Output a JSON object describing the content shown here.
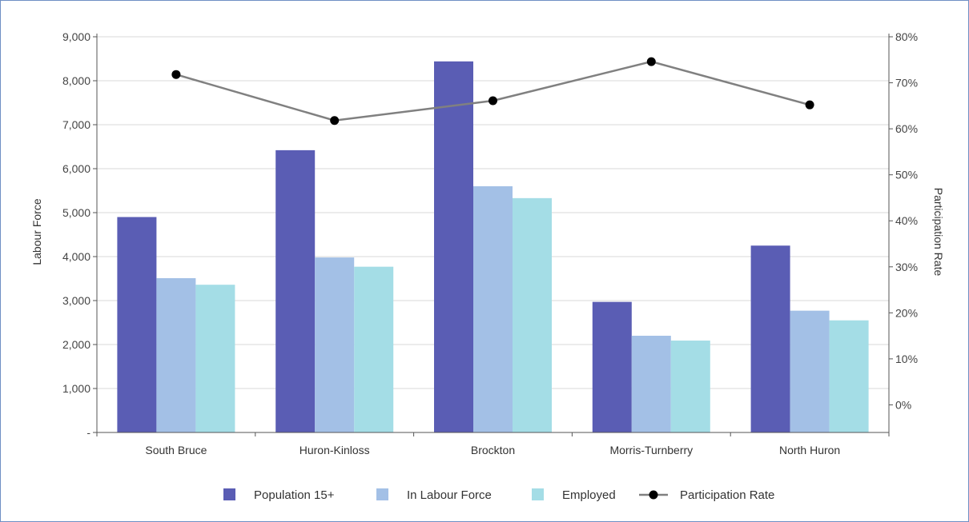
{
  "chart_data": {
    "type": "bar",
    "categories": [
      "South Bruce",
      "Huron-Kinloss",
      "Brockton",
      "Morris-Turnberry",
      "North Huron"
    ],
    "series": [
      {
        "name": "Population 15+",
        "type": "bar",
        "axis": "left",
        "color": "#5a5db4",
        "values": [
          4900,
          6420,
          8440,
          2970,
          4250
        ]
      },
      {
        "name": "In Labour Force",
        "type": "bar",
        "axis": "left",
        "color": "#a3c0e6",
        "values": [
          3510,
          3980,
          5600,
          2200,
          2770
        ]
      },
      {
        "name": "Employed",
        "type": "bar",
        "axis": "left",
        "color": "#a4dde6",
        "values": [
          3360,
          3770,
          5330,
          2090,
          2550
        ]
      },
      {
        "name": "Participation Rate",
        "type": "line",
        "axis": "right",
        "color": "#808080",
        "marker_color": "#000000",
        "values": [
          71.8,
          61.8,
          66.1,
          74.6,
          65.2
        ]
      }
    ],
    "left_axis": {
      "label": "Labour Force",
      "min": 0,
      "max": 9000,
      "ticks": [
        0,
        1000,
        2000,
        3000,
        4000,
        5000,
        6000,
        7000,
        8000,
        9000
      ],
      "tick_labels": [
        "-",
        "1,000",
        "2,000",
        "3,000",
        "4,000",
        "5,000",
        "6,000",
        "7,000",
        "8,000",
        "9,000"
      ]
    },
    "right_axis": {
      "label": "Participation Rate",
      "min": -6,
      "max": 80,
      "ticks": [
        0,
        10,
        20,
        30,
        40,
        50,
        60,
        70,
        80
      ],
      "tick_labels": [
        "0%",
        "10%",
        "20%",
        "30%",
        "40%",
        "50%",
        "60%",
        "70%",
        "80%"
      ]
    },
    "grid": true,
    "legend_position": "bottom"
  }
}
